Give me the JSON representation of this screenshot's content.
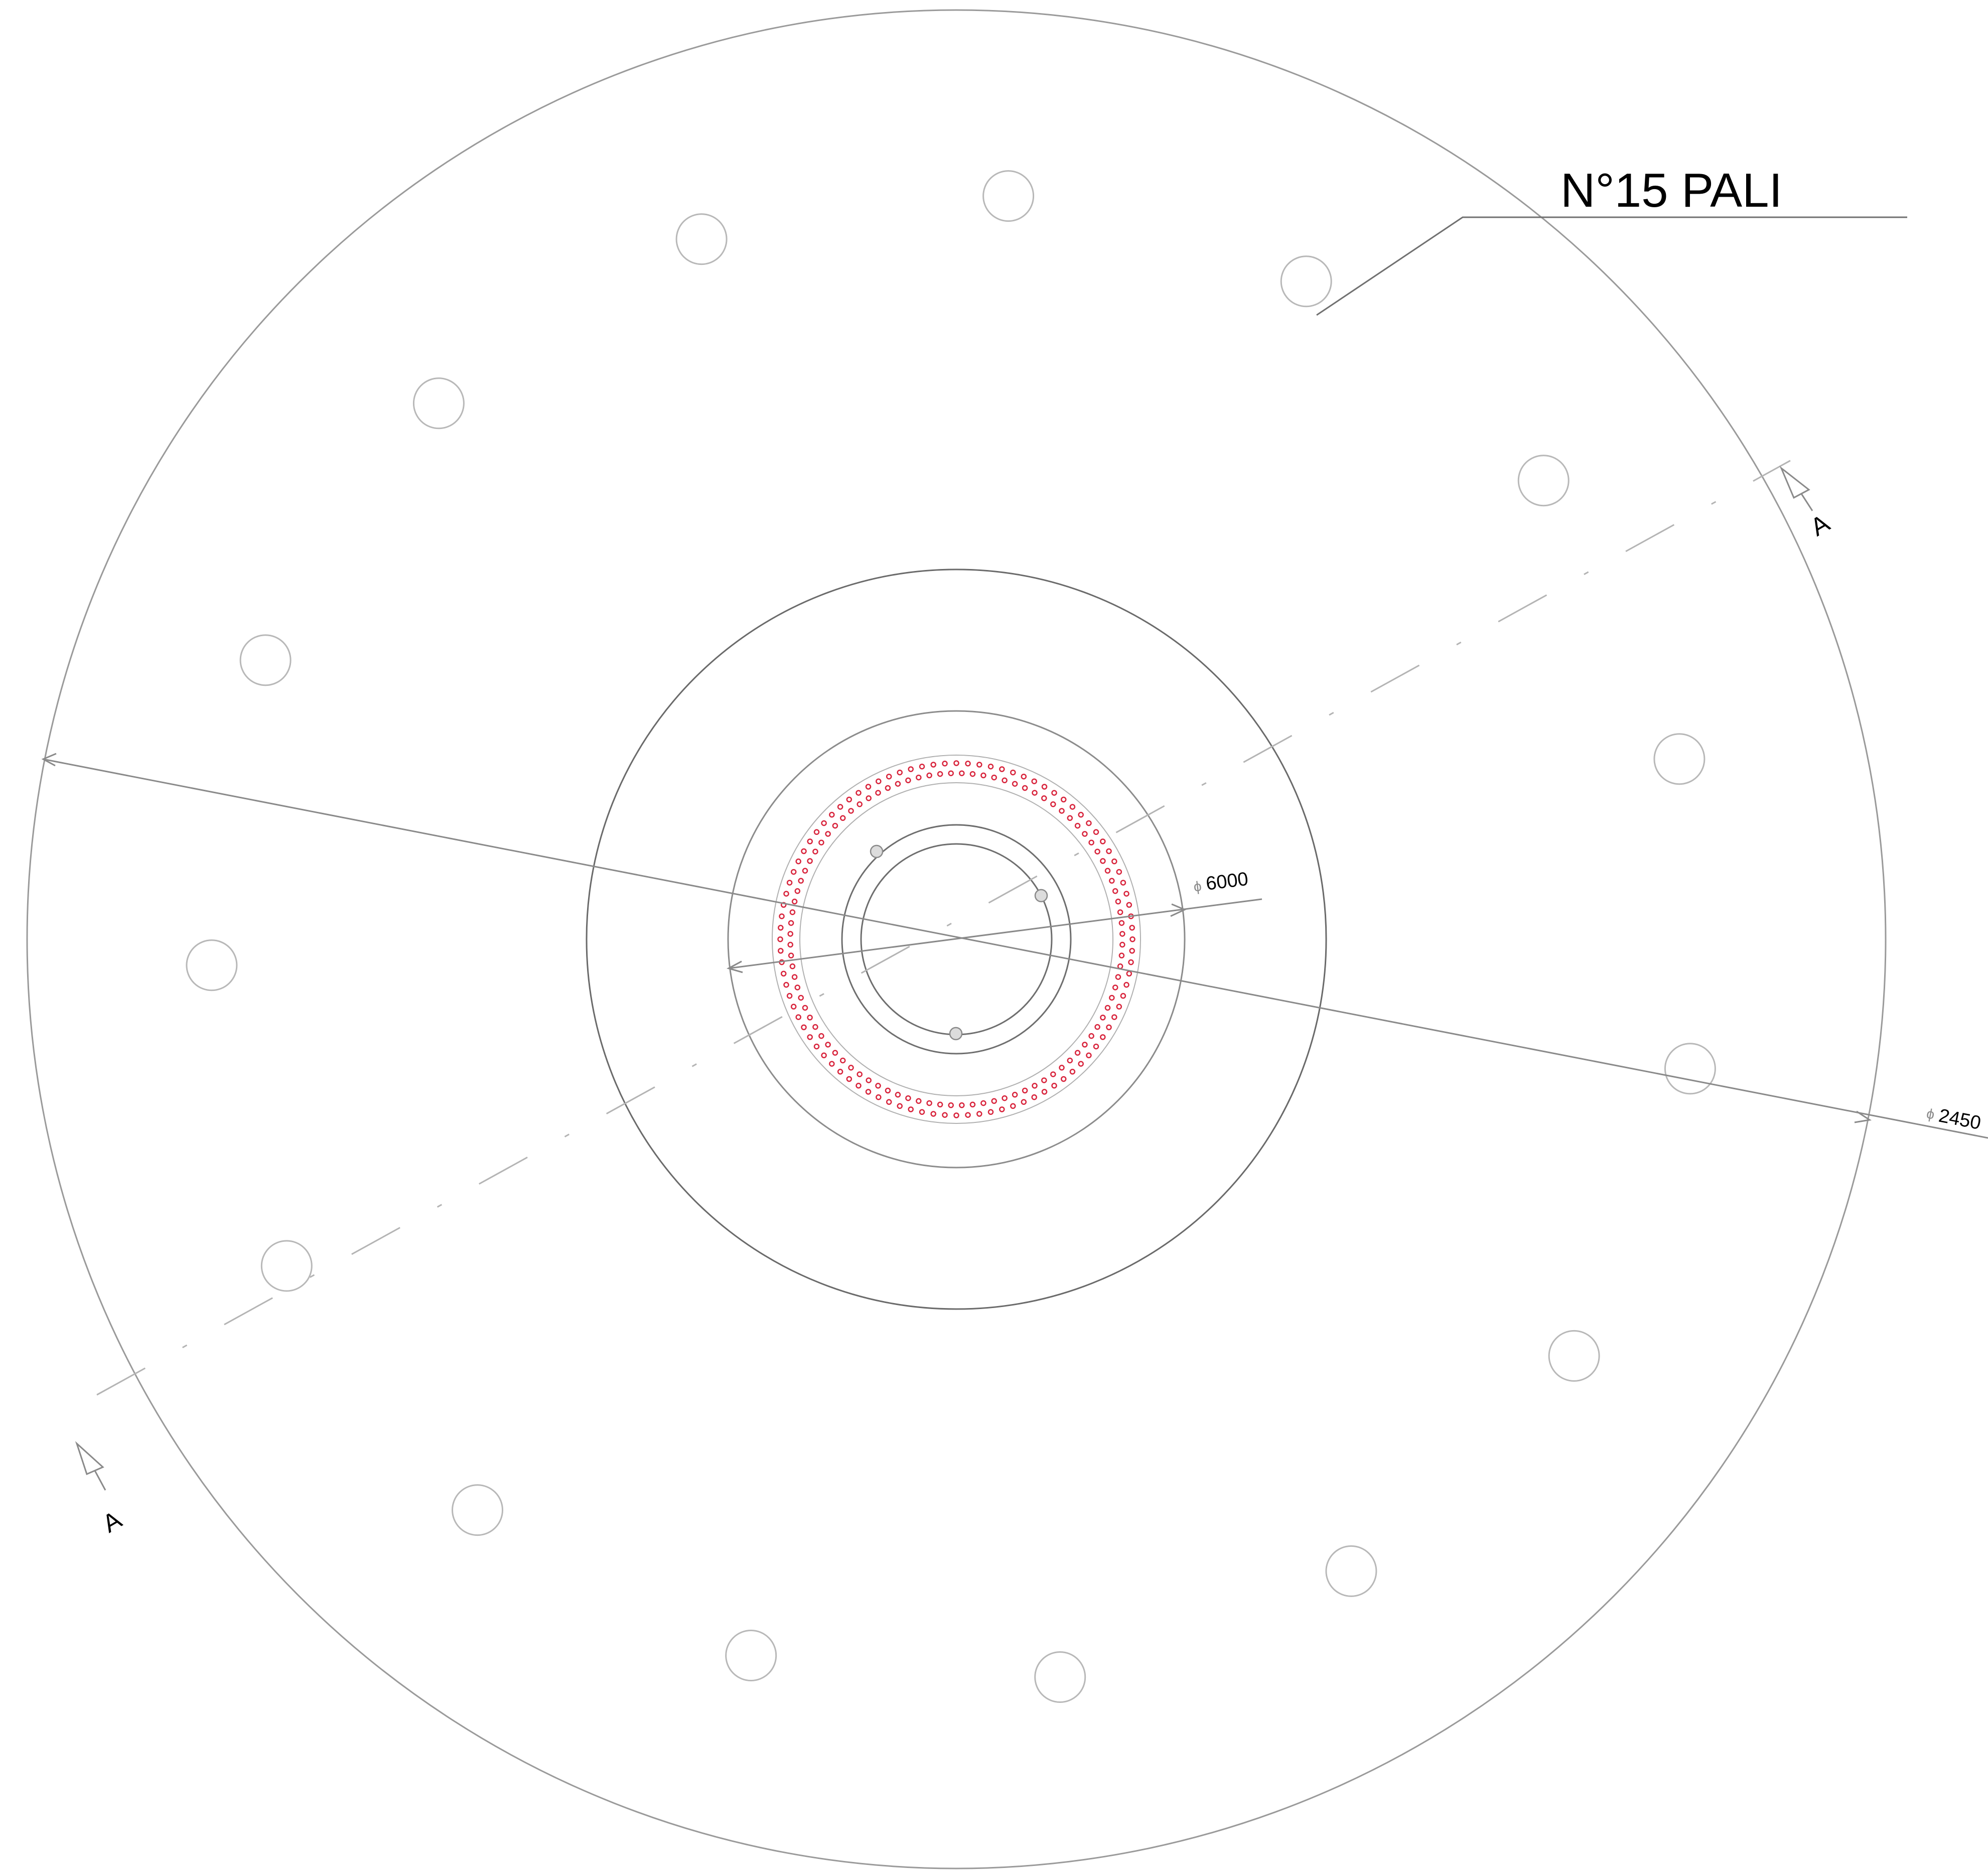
{
  "callout": {
    "text": "N°15 PALI"
  },
  "dimensions": {
    "phi_symbol": "ϕ",
    "inner_diameter": "6000",
    "outer_diameter": "2450"
  },
  "section_marks": {
    "top_right": "A",
    "bottom_left": "A"
  },
  "colors": {
    "background": "#ffffff",
    "line": "#9a9a9a",
    "line_dark": "#555555",
    "accent_red": "#d8243c"
  },
  "counts": {
    "piles": 15,
    "rebar_ring_points": 96
  }
}
